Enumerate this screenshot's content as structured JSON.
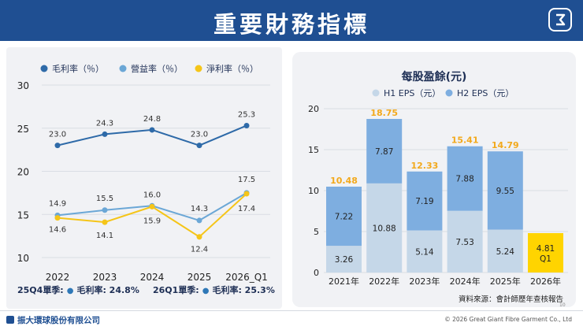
{
  "slide": {
    "title": "重要財務指標",
    "page_number": "10",
    "footer_company": "振大環球股份有限公司",
    "footer_copyright": "© 2026 Great Giant Fibre Garment Co., Ltd"
  },
  "notes": {
    "q4_label": "25Q4單季:",
    "q4_text": "毛利率: 24.8%",
    "q1_label": "26Q1單季:",
    "q1_text": "毛利率: 25.3%"
  },
  "source_text": "資料來源：會計師歷年查核報告",
  "chart_data": [
    {
      "type": "line",
      "title": "",
      "categories": [
        "2022",
        "2023",
        "2024",
        "2025",
        "2026_Q1"
      ],
      "series": [
        {
          "name": "毛利率（％）",
          "color": "#2e6aa8",
          "values": [
            23.0,
            24.3,
            24.8,
            23.0,
            25.3
          ],
          "labels": [
            "23.0",
            "24.3",
            "24.8",
            "23.0",
            "25.3"
          ]
        },
        {
          "name": "營益率（％）",
          "color": "#6ba7d6",
          "values": [
            14.9,
            15.5,
            16.0,
            14.3,
            17.5
          ],
          "labels": [
            "14.9",
            "15.5",
            "16.0",
            "14.3",
            "17.5"
          ]
        },
        {
          "name": "淨利率（％）",
          "color": "#f5c518",
          "values": [
            14.6,
            14.1,
            15.9,
            12.4,
            17.4
          ],
          "labels": [
            "14.6",
            "14.1",
            "15.9",
            "12.4",
            "17.4"
          ]
        }
      ],
      "yticks": [
        "10",
        "15",
        "20",
        "25",
        "30"
      ],
      "ylim": [
        10,
        30
      ],
      "grid": true,
      "legend": "top"
    },
    {
      "type": "bar",
      "title": "每股盈餘(元)",
      "categories": [
        "2021年",
        "2022年",
        "2023年",
        "2024年",
        "2025年",
        "2026年"
      ],
      "series": [
        {
          "name": "H1 EPS（元）",
          "color": "#c5d7e8",
          "values": [
            3.26,
            10.88,
            5.14,
            7.53,
            5.24,
            4.81
          ],
          "labels": [
            "3.26",
            "10.88",
            "5.14",
            "7.53",
            "5.24",
            "4.81"
          ]
        },
        {
          "name": "H2 EPS（元）",
          "color": "#7eaee0",
          "values": [
            7.22,
            7.87,
            7.19,
            7.88,
            9.55,
            null
          ],
          "labels": [
            "7.22",
            "7.87",
            "7.19",
            "7.88",
            "9.55",
            ""
          ]
        }
      ],
      "totals": [
        "10.48",
        "18.75",
        "12.33",
        "15.41",
        "14.79",
        ""
      ],
      "q1_label": "Q1",
      "q1_color": "#ffd400",
      "total_color": "#f2a91c",
      "yticks": [
        "0",
        "5",
        "10",
        "15",
        "20"
      ],
      "ylim": [
        0,
        20
      ],
      "grid": true,
      "legend": "top"
    }
  ]
}
